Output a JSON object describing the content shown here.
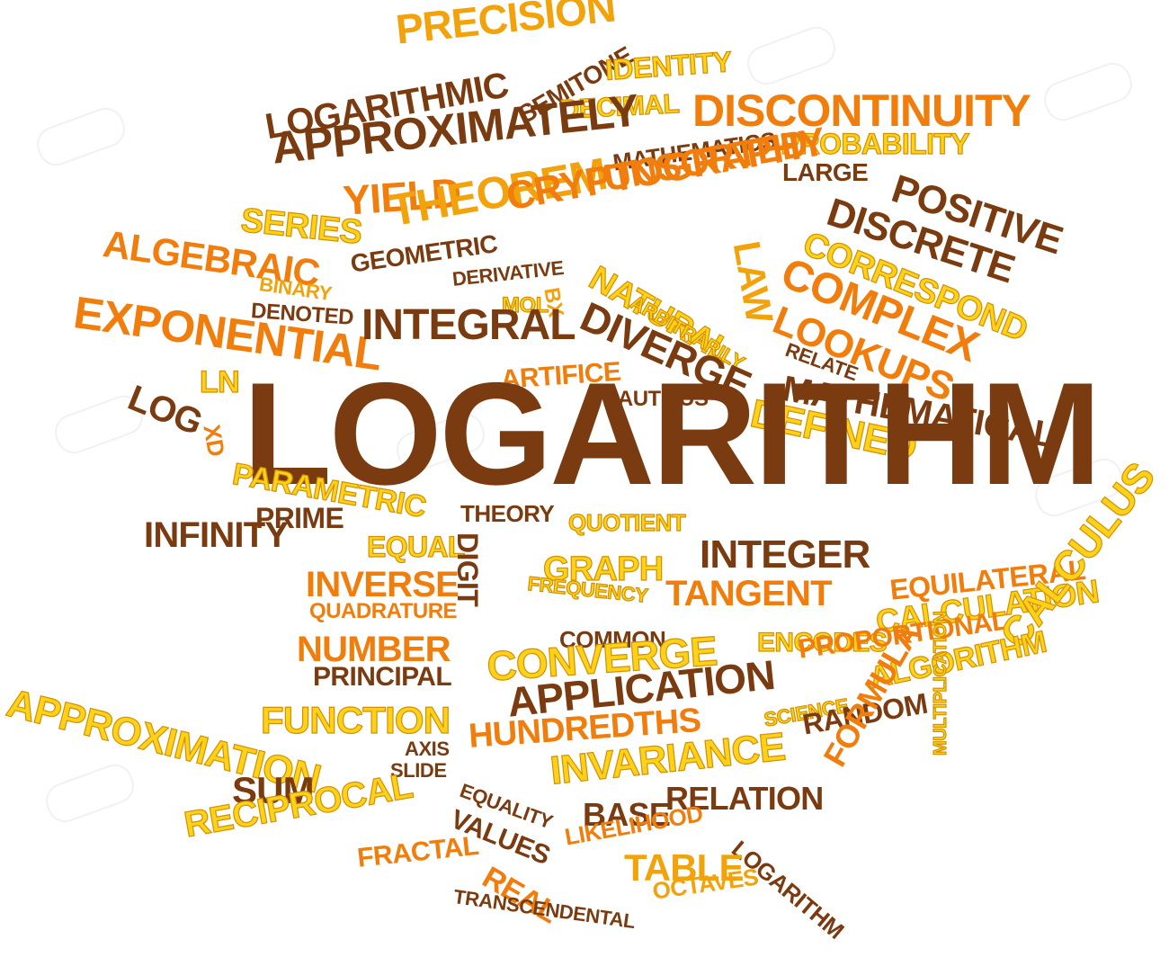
{
  "colors": {
    "brown": "#7a3b10",
    "orange": "#f07d0c",
    "amber": "#f2a20a",
    "yellow": "#f5c500"
  },
  "words": [
    {
      "t": "PRECISION",
      "c": "amber"
    },
    {
      "t": "LOGARITHMIC",
      "c": "brown"
    },
    {
      "t": "SEMITONE",
      "c": "brown"
    },
    {
      "t": "IDENTITY",
      "c": "yellow"
    },
    {
      "t": "DECIMAL",
      "c": "yellow"
    },
    {
      "t": "DISCONTINUITY",
      "c": "orange"
    },
    {
      "t": "APPROXIMATELY",
      "c": "brown"
    },
    {
      "t": "PROBABILITY",
      "c": "yellow"
    },
    {
      "t": "MATHEMATICS",
      "c": "brown"
    },
    {
      "t": "YIELD",
      "c": "orange"
    },
    {
      "t": "UNSORTED",
      "c": "orange"
    },
    {
      "t": "LARGE",
      "c": "brown"
    },
    {
      "t": "THEOREM",
      "c": "amber"
    },
    {
      "t": "POSITIVE",
      "c": "brown"
    },
    {
      "t": "SERIES",
      "c": "yellow"
    },
    {
      "t": "CRYPTOGRAPHY",
      "c": "orange"
    },
    {
      "t": "DISCRETE",
      "c": "brown"
    },
    {
      "t": "ALGEBRAIC",
      "c": "orange"
    },
    {
      "t": "CORRESPOND",
      "c": "yellow"
    },
    {
      "t": "GEOMETRIC",
      "c": "brown"
    },
    {
      "t": "NATURAL",
      "c": "yellow"
    },
    {
      "t": "LAW",
      "c": "amber"
    },
    {
      "t": "COMPLEX",
      "c": "orange"
    },
    {
      "t": "BINARY",
      "c": "amber"
    },
    {
      "t": "DERIVATIVE",
      "c": "brown"
    },
    {
      "t": "EXPONENTIAL",
      "c": "orange"
    },
    {
      "t": "DENOTED",
      "c": "brown"
    },
    {
      "t": "MOL",
      "c": "amber"
    },
    {
      "t": "BX",
      "c": "amber"
    },
    {
      "t": "INTEGRAL",
      "c": "brown"
    },
    {
      "t": "ARBITRARILY",
      "c": "yellow"
    },
    {
      "t": "DIVERGE",
      "c": "brown"
    },
    {
      "t": "LOOKUPS",
      "c": "orange"
    },
    {
      "t": "RELATE",
      "c": "brown"
    },
    {
      "t": "ARTIFICE",
      "c": "orange"
    },
    {
      "t": "LN",
      "c": "yellow"
    },
    {
      "t": "MATHEMATICAL",
      "c": "brown"
    },
    {
      "t": "LOG",
      "c": "brown"
    },
    {
      "t": "NAUTILUS",
      "c": "brown"
    },
    {
      "t": "DEFINED",
      "c": "yellow"
    },
    {
      "t": "LOGARITHM",
      "c": "brown"
    },
    {
      "t": "XD",
      "c": "orange"
    },
    {
      "t": "PARAMETRIC",
      "c": "yellow"
    },
    {
      "t": "PRIME",
      "c": "brown"
    },
    {
      "t": "THEORY",
      "c": "brown"
    },
    {
      "t": "INFINITY",
      "c": "brown"
    },
    {
      "t": "QUOTIENT",
      "c": "yellow"
    },
    {
      "t": "EQUAL",
      "c": "yellow"
    },
    {
      "t": "INTEGER",
      "c": "brown"
    },
    {
      "t": "DIGIT",
      "c": "brown"
    },
    {
      "t": "GRAPH",
      "c": "amber"
    },
    {
      "t": "INVERSE",
      "c": "orange"
    },
    {
      "t": "FREQUENCY",
      "c": "yellow"
    },
    {
      "t": "TANGENT",
      "c": "orange"
    },
    {
      "t": "EQUILATERAL",
      "c": "orange"
    },
    {
      "t": "QUADRATURE",
      "c": "orange"
    },
    {
      "t": "CALCULATION",
      "c": "yellow"
    },
    {
      "t": "COMMON",
      "c": "brown"
    },
    {
      "t": "NUMBER",
      "c": "orange"
    },
    {
      "t": "ENCODES",
      "c": "amber"
    },
    {
      "t": "CONVERGE",
      "c": "yellow"
    },
    {
      "t": "PROPORTIONAL",
      "c": "orange"
    },
    {
      "t": "PRINCIPAL",
      "c": "brown"
    },
    {
      "t": "CALCULUS",
      "c": "yellow"
    },
    {
      "t": "ALGORITHM",
      "c": "yellow"
    },
    {
      "t": "APPROXIMATION",
      "c": "yellow"
    },
    {
      "t": "FUNCTION",
      "c": "yellow"
    },
    {
      "t": "APPLICATION",
      "c": "brown"
    },
    {
      "t": "SCIENCE",
      "c": "yellow"
    },
    {
      "t": "RANDOM",
      "c": "brown"
    },
    {
      "t": "HUNDREDTHS",
      "c": "orange"
    },
    {
      "t": "AXIS",
      "c": "brown"
    },
    {
      "t": "SLIDE",
      "c": "brown"
    },
    {
      "t": "INVARIANCE",
      "c": "yellow"
    },
    {
      "t": "FORMULA",
      "c": "orange"
    },
    {
      "t": "SUM",
      "c": "brown"
    },
    {
      "t": "EQUALITY",
      "c": "brown"
    },
    {
      "t": "BASE",
      "c": "brown"
    },
    {
      "t": "RELATION",
      "c": "brown"
    },
    {
      "t": "MULTIPLICATION",
      "c": "yellow"
    },
    {
      "t": "RECIPROCAL",
      "c": "yellow"
    },
    {
      "t": "VALUES",
      "c": "brown"
    },
    {
      "t": "LIKELIHOOD",
      "c": "orange"
    },
    {
      "t": "LOGARITHM",
      "c": "brown"
    },
    {
      "t": "FRACTAL",
      "c": "orange"
    },
    {
      "t": "REAL",
      "c": "orange"
    },
    {
      "t": "TABLE",
      "c": "amber"
    },
    {
      "t": "OCTAVES",
      "c": "amber"
    },
    {
      "t": "TRANSCENDENTAL",
      "c": "brown"
    }
  ]
}
